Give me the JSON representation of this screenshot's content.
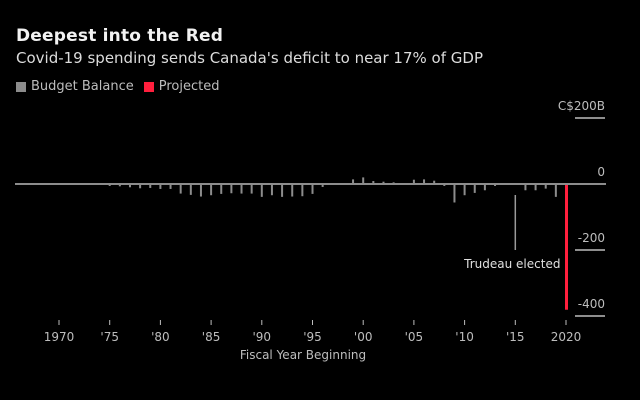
{
  "chart_data": {
    "type": "bar",
    "title": "Deepest into the Red",
    "subtitle": "Covid-19 spending sends Canada's deficit to near 17% of GDP",
    "legend": [
      {
        "label": "Budget Balance",
        "color": "#8c8c8c"
      },
      {
        "label": "Projected",
        "color": "#ff1f3d"
      }
    ],
    "legend_placement": "top-left",
    "xlabel": "Fiscal Year Beginning",
    "ylabel": "",
    "y_unit_label": "C$200B",
    "ylim": [
      -400,
      200
    ],
    "y_ticks": [
      {
        "value": 200,
        "label": "C$200B"
      },
      {
        "value": 0,
        "label": "0"
      },
      {
        "value": -200,
        "label": "-200"
      },
      {
        "value": -400,
        "label": "-400"
      }
    ],
    "x_ticks": [
      {
        "year": 1970,
        "label": "1970"
      },
      {
        "year": 1975,
        "label": "'75"
      },
      {
        "year": 1980,
        "label": "'80"
      },
      {
        "year": 1985,
        "label": "'85"
      },
      {
        "year": 1990,
        "label": "'90"
      },
      {
        "year": 1995,
        "label": "'95"
      },
      {
        "year": 2000,
        "label": "'00"
      },
      {
        "year": 2005,
        "label": "'05"
      },
      {
        "year": 2010,
        "label": "'10"
      },
      {
        "year": 2015,
        "label": "'15"
      },
      {
        "year": 2020,
        "label": "2020"
      }
    ],
    "grid": false,
    "series": [
      {
        "name": "Budget Balance",
        "color": "#8c8c8c",
        "x": [
          1966,
          1967,
          1968,
          1969,
          1970,
          1971,
          1972,
          1973,
          1974,
          1975,
          1976,
          1977,
          1978,
          1979,
          1980,
          1981,
          1982,
          1983,
          1984,
          1985,
          1986,
          1987,
          1988,
          1989,
          1990,
          1991,
          1992,
          1993,
          1994,
          1995,
          1996,
          1997,
          1998,
          1999,
          2000,
          2001,
          2002,
          2003,
          2004,
          2005,
          2006,
          2007,
          2008,
          2009,
          2010,
          2011,
          2012,
          2013,
          2014,
          2015,
          2016,
          2017,
          2018,
          2019
        ],
        "values": [
          -1,
          -1,
          -1,
          0,
          -1,
          -2,
          -2,
          -2,
          -3,
          -6,
          -7,
          -10,
          -13,
          -12,
          -15,
          -15,
          -29,
          -33,
          -38,
          -34,
          -30,
          -28,
          -29,
          -29,
          -39,
          -34,
          -39,
          -38,
          -37,
          -30,
          -9,
          3,
          3,
          14,
          20,
          9,
          7,
          5,
          2,
          13,
          14,
          10,
          -6,
          -56,
          -34,
          -27,
          -19,
          -6,
          -2,
          -1,
          -19,
          -19,
          -14,
          -39
        ]
      },
      {
        "name": "Projected",
        "color": "#ff1f3d",
        "x": [
          2020
        ],
        "values": [
          -381
        ]
      }
    ],
    "annotations": [
      {
        "text": "Trudeau elected",
        "year": 2015,
        "line_to": -200
      }
    ]
  }
}
